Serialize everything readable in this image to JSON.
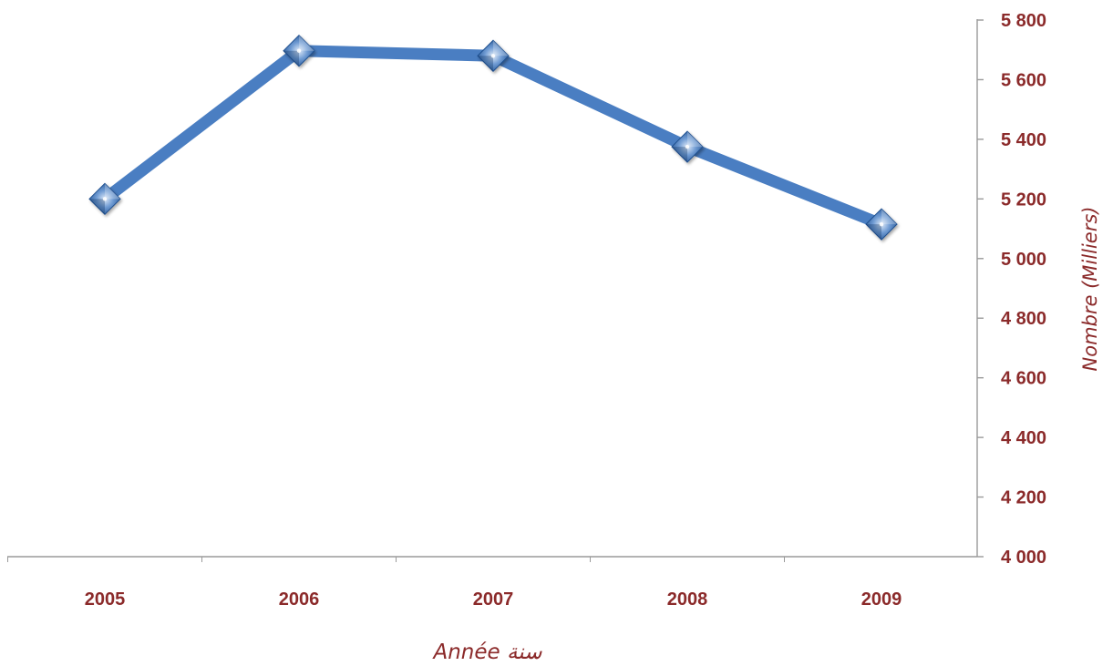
{
  "chart_data": {
    "type": "line",
    "categories": [
      "2005",
      "2006",
      "2007",
      "2008",
      "2009"
    ],
    "series": [
      {
        "values": [
          5200,
          5697,
          5680,
          5375,
          5115
        ],
        "color": "#4a7ec2"
      }
    ],
    "xlabel": "Année سنة",
    "ylabel": "Nombre (Milliers)",
    "ylim": [
      4000,
      5800
    ],
    "yticks": [
      4000,
      4200,
      4400,
      4600,
      4800,
      5000,
      5200,
      5400,
      5600,
      5800
    ],
    "ytick_labels": [
      "4 000",
      "4 200",
      "4 400",
      "4 600",
      "4 800",
      "5 000",
      "5 200",
      "5 400",
      "5 600",
      "5 800"
    ],
    "y_axis_side": "right",
    "grid": true,
    "legend": false,
    "marker": "diamond",
    "colors": {
      "label": "#8b2a2a",
      "line": "#4a7ec2",
      "marker": "#3b6fb6",
      "axis": "#9a9a9a",
      "grid_start": "#f2a020",
      "grid_mid": "#8b1a3a",
      "grid_end": "#1a1a4a"
    }
  }
}
